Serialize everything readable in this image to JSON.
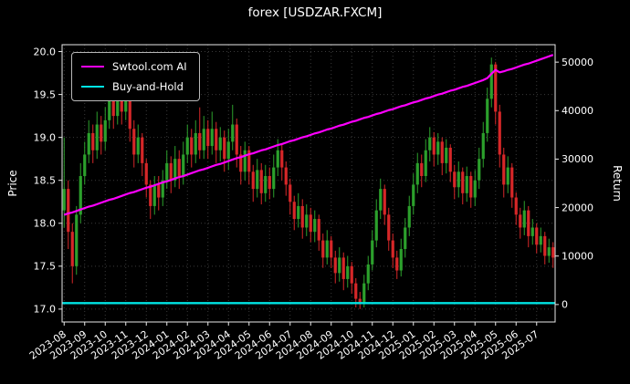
{
  "chart_data": {
    "type": "candlestick+line",
    "title": "forex [USDZAR.FXCM]",
    "background": "#000000",
    "text_color": "#ffffff",
    "grid_color": "#3a3a3a",
    "spine_color": "#e8e8e8",
    "price_axis": {
      "label": "Price",
      "ticks": [
        17.0,
        17.5,
        18.0,
        18.5,
        19.0,
        19.5,
        20.0
      ],
      "lim": [
        16.85,
        20.08
      ]
    },
    "return_axis": {
      "label": "Return",
      "ticks": [
        0,
        10000,
        20000,
        30000,
        40000,
        50000
      ],
      "lim": [
        -3600,
        53600
      ]
    },
    "x_tick_labels": [
      "2023-08",
      "2023-09",
      "2023-10",
      "2023-11",
      "2023-12",
      "2024-01",
      "2024-02",
      "2024-03",
      "2024-04",
      "2024-05",
      "2024-06",
      "2024-07",
      "2024-08",
      "2024-09",
      "2024-10",
      "2024-11",
      "2024-12",
      "2025-01",
      "2025-02",
      "2025-03",
      "2025-04",
      "2025-05",
      "2025-06",
      "2025-07"
    ],
    "x_tick_every": 5,
    "candles": {
      "up_color": "#2ca02c",
      "down_color": "#d62728",
      "ohlc": [
        [
          18.15,
          19.0,
          17.95,
          18.4
        ],
        [
          18.4,
          18.5,
          17.7,
          17.9
        ],
        [
          17.9,
          18.0,
          17.3,
          17.5
        ],
        [
          17.5,
          18.2,
          17.4,
          18.1
        ],
        [
          18.1,
          18.7,
          18.0,
          18.55
        ],
        [
          18.55,
          18.95,
          18.45,
          18.8
        ],
        [
          18.8,
          19.2,
          18.7,
          19.05
        ],
        [
          19.05,
          19.15,
          18.7,
          18.85
        ],
        [
          18.85,
          19.3,
          18.75,
          19.15
        ],
        [
          19.15,
          19.25,
          18.8,
          18.95
        ],
        [
          18.95,
          19.35,
          18.85,
          19.2
        ],
        [
          19.2,
          19.6,
          19.1,
          19.45
        ],
        [
          19.45,
          19.55,
          19.1,
          19.25
        ],
        [
          19.25,
          19.65,
          19.15,
          19.5
        ],
        [
          19.5,
          19.6,
          19.15,
          19.3
        ],
        [
          19.3,
          19.62,
          19.2,
          19.5
        ],
        [
          19.5,
          19.55,
          18.95,
          19.1
        ],
        [
          19.1,
          19.2,
          18.65,
          18.8
        ],
        [
          18.8,
          19.15,
          18.7,
          19.0
        ],
        [
          19.0,
          19.05,
          18.55,
          18.7
        ],
        [
          18.7,
          18.75,
          18.3,
          18.45
        ],
        [
          18.45,
          18.5,
          18.05,
          18.2
        ],
        [
          18.2,
          18.55,
          18.1,
          18.45
        ],
        [
          18.45,
          18.55,
          18.15,
          18.3
        ],
        [
          18.3,
          18.62,
          18.2,
          18.5
        ],
        [
          18.5,
          18.85,
          18.4,
          18.7
        ],
        [
          18.7,
          18.78,
          18.35,
          18.5
        ],
        [
          18.5,
          18.9,
          18.42,
          18.75
        ],
        [
          18.75,
          18.85,
          18.4,
          18.55
        ],
        [
          18.55,
          18.95,
          18.45,
          18.8
        ],
        [
          18.8,
          19.15,
          18.7,
          19.0
        ],
        [
          19.0,
          19.1,
          18.65,
          18.8
        ],
        [
          18.8,
          19.2,
          18.7,
          19.05
        ],
        [
          19.05,
          19.35,
          18.75,
          18.85
        ],
        [
          18.85,
          19.25,
          18.75,
          19.1
        ],
        [
          19.1,
          19.2,
          18.75,
          18.9
        ],
        [
          18.9,
          19.3,
          18.8,
          19.1
        ],
        [
          19.1,
          19.18,
          18.7,
          18.85
        ],
        [
          18.85,
          19.12,
          18.72,
          19.0
        ],
        [
          19.0,
          19.08,
          18.6,
          18.75
        ],
        [
          18.75,
          19.1,
          18.62,
          18.95
        ],
        [
          18.95,
          19.38,
          18.85,
          19.15
        ],
        [
          19.15,
          19.22,
          18.65,
          18.8
        ],
        [
          18.8,
          18.9,
          18.45,
          18.6
        ],
        [
          18.6,
          18.95,
          18.5,
          18.85
        ],
        [
          18.85,
          18.9,
          18.45,
          18.6
        ],
        [
          18.6,
          18.68,
          18.25,
          18.4
        ],
        [
          18.4,
          18.75,
          18.3,
          18.62
        ],
        [
          18.62,
          18.7,
          18.22,
          18.35
        ],
        [
          18.35,
          18.68,
          18.25,
          18.55
        ],
        [
          18.55,
          18.65,
          18.28,
          18.4
        ],
        [
          18.4,
          18.8,
          18.3,
          18.65
        ],
        [
          18.65,
          18.98,
          18.55,
          18.85
        ],
        [
          18.85,
          18.92,
          18.5,
          18.65
        ],
        [
          18.65,
          18.72,
          18.32,
          18.45
        ],
        [
          18.45,
          18.52,
          18.1,
          18.25
        ],
        [
          18.25,
          18.32,
          17.92,
          18.05
        ],
        [
          18.05,
          18.35,
          17.95,
          18.2
        ],
        [
          18.2,
          18.28,
          17.82,
          17.95
        ],
        [
          17.95,
          18.22,
          17.85,
          18.1
        ],
        [
          18.1,
          18.18,
          17.78,
          17.9
        ],
        [
          17.9,
          18.15,
          17.78,
          18.05
        ],
        [
          18.05,
          18.1,
          17.68,
          17.8
        ],
        [
          17.8,
          17.88,
          17.48,
          17.6
        ],
        [
          17.6,
          17.92,
          17.52,
          17.8
        ],
        [
          17.8,
          17.85,
          17.48,
          17.6
        ],
        [
          17.6,
          17.68,
          17.3,
          17.42
        ],
        [
          17.42,
          17.72,
          17.32,
          17.6
        ],
        [
          17.6,
          17.66,
          17.22,
          17.35
        ],
        [
          17.35,
          17.62,
          17.25,
          17.5
        ],
        [
          17.5,
          17.55,
          17.18,
          17.3
        ],
        [
          17.3,
          17.36,
          17.02,
          17.12
        ],
        [
          17.12,
          17.2,
          17.0,
          17.06
        ],
        [
          17.06,
          17.4,
          17.02,
          17.3
        ],
        [
          17.3,
          17.62,
          17.22,
          17.52
        ],
        [
          17.52,
          17.92,
          17.45,
          17.8
        ],
        [
          17.8,
          18.28,
          17.72,
          18.15
        ],
        [
          18.15,
          18.52,
          18.05,
          18.4
        ],
        [
          18.4,
          18.45,
          17.98,
          18.1
        ],
        [
          18.1,
          18.18,
          17.68,
          17.8
        ],
        [
          17.8,
          17.88,
          17.48,
          17.6
        ],
        [
          17.6,
          17.68,
          17.35,
          17.45
        ],
        [
          17.45,
          17.82,
          17.38,
          17.7
        ],
        [
          17.7,
          18.06,
          17.6,
          17.95
        ],
        [
          17.95,
          18.32,
          17.85,
          18.2
        ],
        [
          18.2,
          18.58,
          18.1,
          18.45
        ],
        [
          18.45,
          18.82,
          18.35,
          18.7
        ],
        [
          18.7,
          18.8,
          18.42,
          18.55
        ],
        [
          18.55,
          18.98,
          18.48,
          18.85
        ],
        [
          18.85,
          19.12,
          18.72,
          19.0
        ],
        [
          19.0,
          19.06,
          18.66,
          18.8
        ],
        [
          18.8,
          19.05,
          18.68,
          18.95
        ],
        [
          18.95,
          19.0,
          18.56,
          18.7
        ],
        [
          18.7,
          18.98,
          18.58,
          18.88
        ],
        [
          18.88,
          18.92,
          18.48,
          18.6
        ],
        [
          18.6,
          18.68,
          18.28,
          18.42
        ],
        [
          18.42,
          18.72,
          18.3,
          18.6
        ],
        [
          18.6,
          18.65,
          18.22,
          18.35
        ],
        [
          18.35,
          18.66,
          18.25,
          18.55
        ],
        [
          18.55,
          18.6,
          18.18,
          18.3
        ],
        [
          18.3,
          18.62,
          18.2,
          18.5
        ],
        [
          18.5,
          18.88,
          18.4,
          18.75
        ],
        [
          18.75,
          19.18,
          18.65,
          19.05
        ],
        [
          19.05,
          19.58,
          18.95,
          19.45
        ],
        [
          19.45,
          19.93,
          19.35,
          19.85
        ],
        [
          19.85,
          19.88,
          19.15,
          19.3
        ],
        [
          19.3,
          19.38,
          18.65,
          18.8
        ],
        [
          18.8,
          18.88,
          18.3,
          18.45
        ],
        [
          18.45,
          18.78,
          18.35,
          18.65
        ],
        [
          18.65,
          18.7,
          18.18,
          18.3
        ],
        [
          18.3,
          18.36,
          17.98,
          18.1
        ],
        [
          18.1,
          18.18,
          17.82,
          17.95
        ],
        [
          17.95,
          18.26,
          17.86,
          18.15
        ],
        [
          18.15,
          18.2,
          17.72,
          17.85
        ],
        [
          17.85,
          18.05,
          17.75,
          17.95
        ],
        [
          17.95,
          18.0,
          17.65,
          17.75
        ],
        [
          17.75,
          17.95,
          17.66,
          17.85
        ],
        [
          17.85,
          17.9,
          17.52,
          17.62
        ],
        [
          17.62,
          17.82,
          17.54,
          17.72
        ],
        [
          17.72,
          17.78,
          17.48,
          17.6
        ]
      ]
    },
    "series": [
      {
        "name": "Swtool.com AI",
        "color": "#ff00ff",
        "axis": "return",
        "values": [
          18500,
          18800,
          19000,
          19300,
          19600,
          19900,
          20200,
          20400,
          20700,
          21000,
          21300,
          21600,
          21800,
          22100,
          22400,
          22700,
          23000,
          23200,
          23500,
          23800,
          24100,
          24300,
          24600,
          24900,
          25200,
          25400,
          25700,
          26000,
          26300,
          26500,
          26800,
          27100,
          27400,
          27700,
          27900,
          28200,
          28500,
          28800,
          29000,
          29300,
          29600,
          29900,
          30200,
          30400,
          30700,
          31000,
          31200,
          31500,
          31800,
          32000,
          32300,
          32600,
          32900,
          33100,
          33400,
          33700,
          33900,
          34200,
          34500,
          34700,
          35000,
          35300,
          35500,
          35800,
          36100,
          36300,
          36600,
          36900,
          37100,
          37400,
          37700,
          37900,
          38200,
          38500,
          38700,
          39000,
          39300,
          39500,
          39800,
          40100,
          40300,
          40600,
          40900,
          41100,
          41400,
          41700,
          41900,
          42200,
          42500,
          42700,
          43000,
          43300,
          43500,
          43800,
          44100,
          44300,
          44600,
          44900,
          45100,
          45400,
          45700,
          46000,
          46300,
          46700,
          47600,
          48400,
          47900,
          48100,
          48400,
          48600,
          48900,
          49200,
          49500,
          49700,
          50000,
          50300,
          50600,
          50900,
          51200,
          51500
        ]
      },
      {
        "name": "Buy-and-Hold",
        "color": "#00e5e5",
        "axis": "return",
        "constant": 300
      }
    ],
    "legend": {
      "position": "upper-left",
      "entries": [
        {
          "label": "Swtool.com AI",
          "color": "#ff00ff"
        },
        {
          "label": "Buy-and-Hold",
          "color": "#00e5e5"
        }
      ]
    }
  }
}
